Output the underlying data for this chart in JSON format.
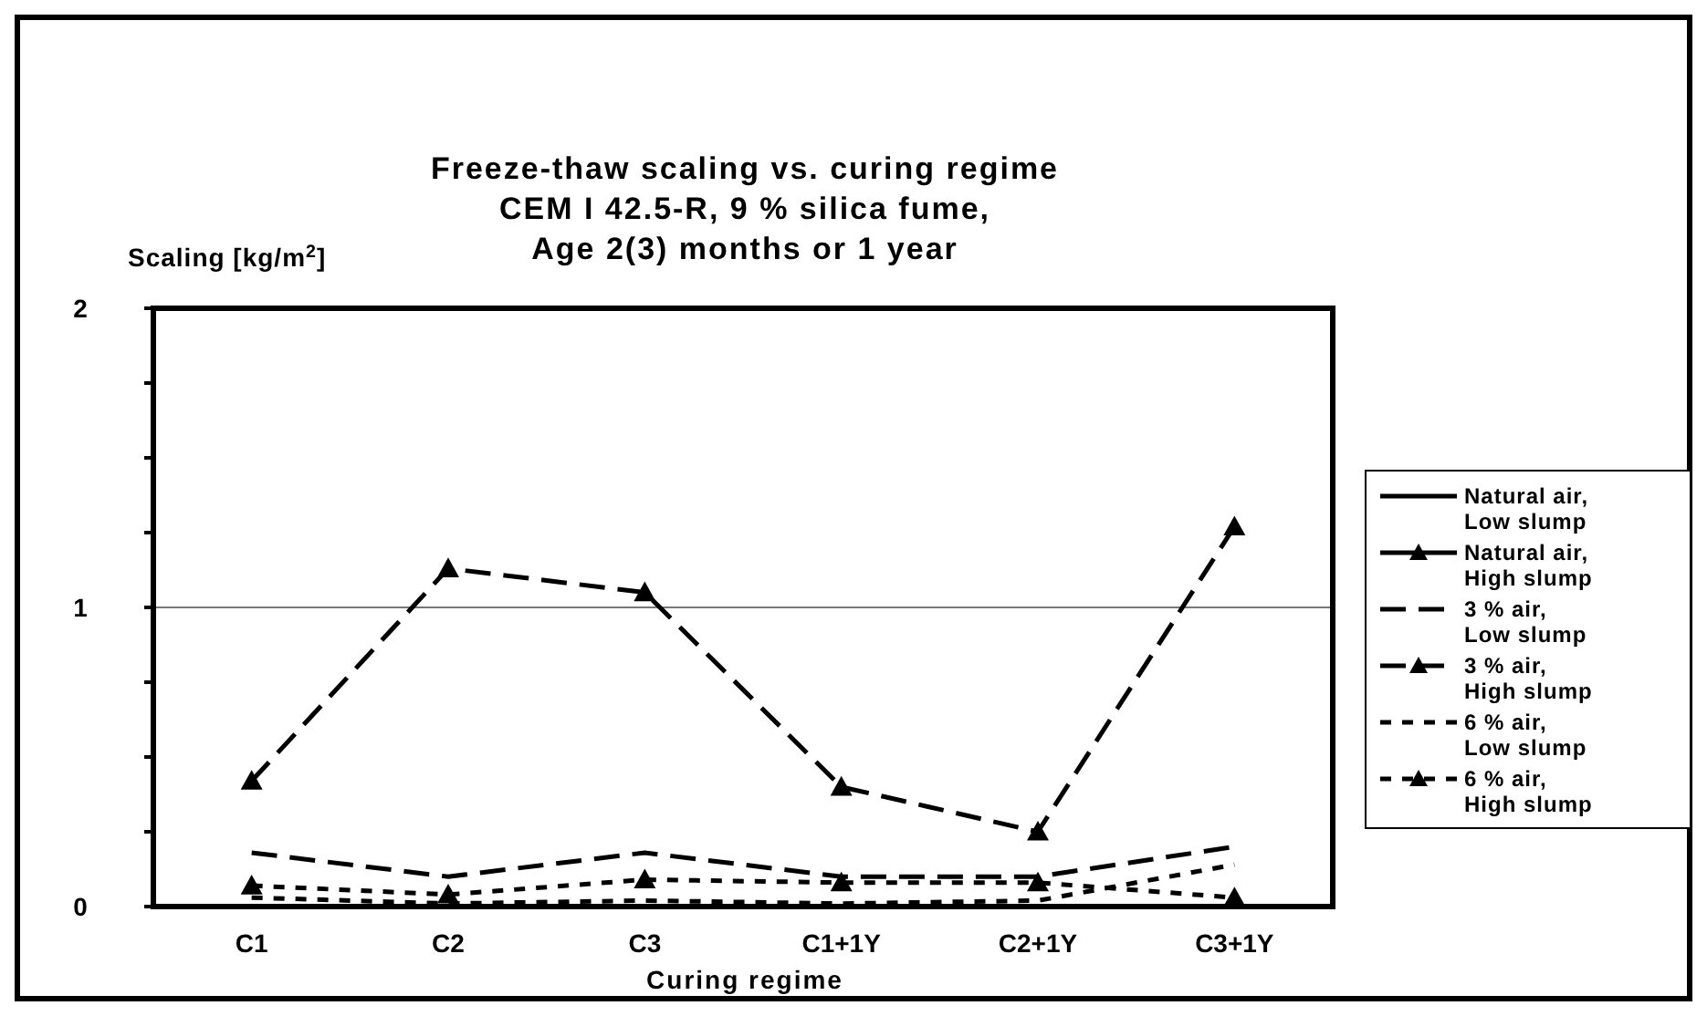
{
  "chart_data": {
    "type": "line",
    "title": "Freeze-thaw scaling vs. curing regime\nCEM I 42.5-R, 9 % silica fume,\nAge 2(3) months or 1 year",
    "xlabel": "Curing regime",
    "ylabel": "Scaling [kg/m$^{2}$]",
    "categories": [
      "C1",
      "C2",
      "C3",
      "C1+1Y",
      "C2+1Y",
      "C3+1Y"
    ],
    "series": [
      {
        "name": "Natural air, Low slump",
        "color": "#000000",
        "line_style": "solid",
        "marker": "none",
        "values": [
          null,
          null,
          null,
          null,
          null,
          null
        ]
      },
      {
        "name": "Natural air, High slump",
        "color": "#000000",
        "line_style": "solid",
        "marker": "triangle",
        "values": [
          null,
          null,
          null,
          null,
          null,
          null
        ]
      },
      {
        "name": "3 % air, Low slump",
        "color": "#000000",
        "line_style": "dashed",
        "marker": "none",
        "values": [
          0.18,
          0.1,
          0.18,
          0.1,
          0.1,
          0.2
        ]
      },
      {
        "name": "3 % air, High slump",
        "color": "#000000",
        "line_style": "dashed",
        "marker": "triangle",
        "values": [
          0.42,
          1.13,
          1.05,
          0.4,
          0.25,
          1.27
        ]
      },
      {
        "name": "6 % air, Low slump",
        "color": "#000000",
        "line_style": "dotted",
        "marker": "none",
        "values": [
          0.03,
          0.01,
          0.02,
          0.01,
          0.02,
          0.14
        ]
      },
      {
        "name": "6 % air, High slump",
        "color": "#000000",
        "line_style": "dotted",
        "marker": "triangle",
        "values": [
          0.07,
          0.04,
          0.09,
          0.08,
          0.08,
          0.03
        ]
      }
    ],
    "ylim": [
      0,
      2
    ],
    "yticks": [
      0,
      {
        "value": 0.25,
        "label": null
      },
      {
        "value": 0.5,
        "label": null
      },
      {
        "value": 0.75,
        "label": null
      },
      1,
      {
        "value": 1.25,
        "label": null
      },
      {
        "value": 1.5,
        "label": null
      },
      {
        "value": 1.75,
        "label": null
      },
      2
    ],
    "grid": "y",
    "legend": "right"
  }
}
